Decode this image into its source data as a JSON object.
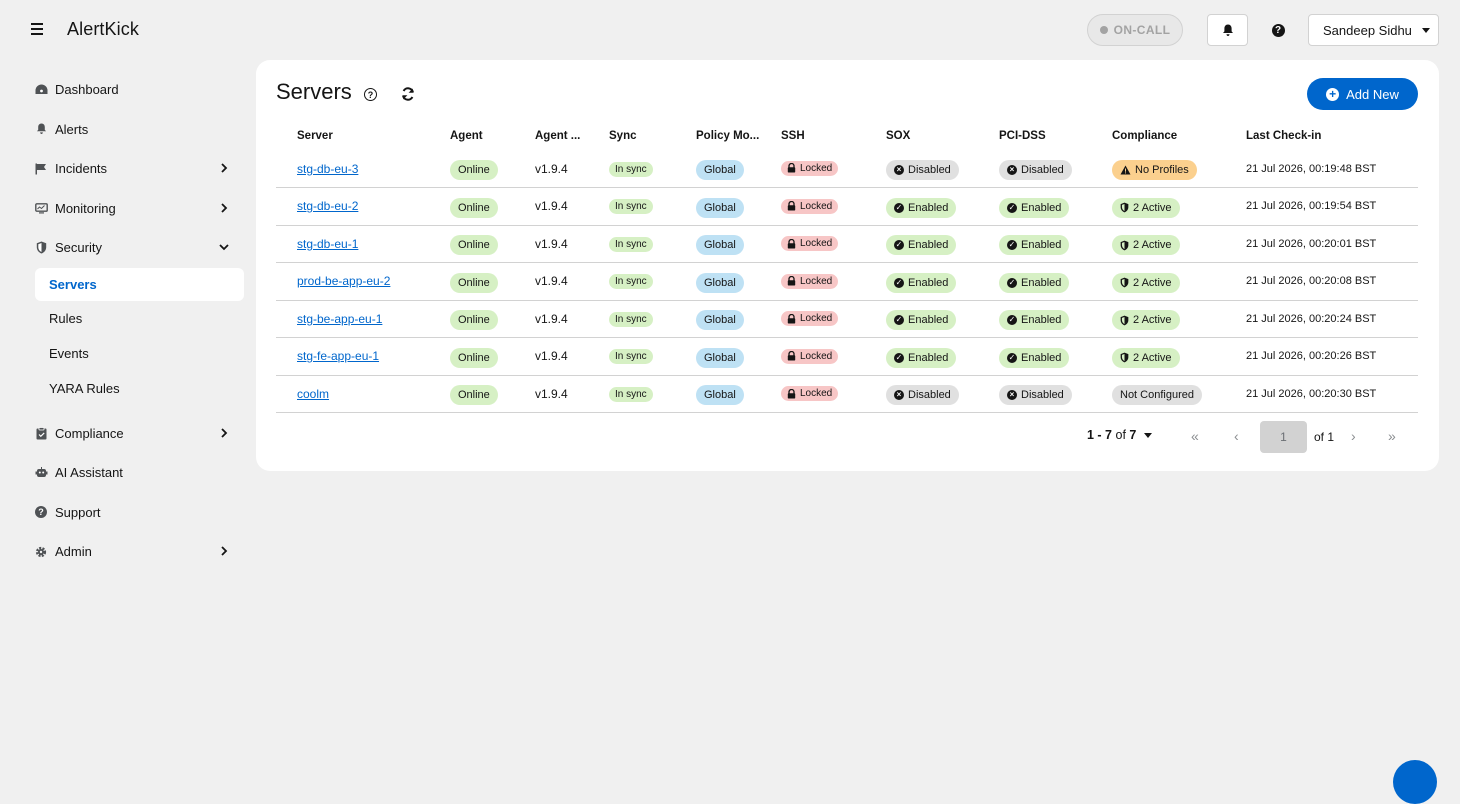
{
  "app": {
    "name": "AlertKick"
  },
  "header": {
    "oncall_label": "ON-CALL",
    "user_name": "Sandeep Sidhu"
  },
  "sidebar": {
    "items": [
      {
        "label": "Dashboard",
        "icon": "dashboard-icon"
      },
      {
        "label": "Alerts",
        "icon": "bell-icon"
      },
      {
        "label": "Incidents",
        "icon": "flag-icon"
      },
      {
        "label": "Monitoring",
        "icon": "monitor-icon"
      },
      {
        "label": "Security",
        "icon": "shield-icon"
      }
    ],
    "security_sub": [
      "Servers",
      "Rules",
      "Events",
      "YARA Rules"
    ],
    "items_after": [
      {
        "label": "Compliance",
        "icon": "clipboard-icon"
      },
      {
        "label": "AI Assistant",
        "icon": "robot-icon"
      },
      {
        "label": "Support",
        "icon": "help-icon"
      },
      {
        "label": "Admin",
        "icon": "gear-icon"
      }
    ]
  },
  "main": {
    "title": "Servers",
    "add_label": "Add New",
    "columns": [
      "Server",
      "Agent",
      "Agent ...",
      "Sync",
      "Policy Mo...",
      "SSH",
      "SOX",
      "PCI-DSS",
      "Compliance",
      "Last Check-in"
    ],
    "rows": [
      {
        "server": "stg-db-eu-3",
        "agent": "Online",
        "version": "v1.9.4",
        "sync": "In sync",
        "policy": "Global",
        "ssh": "Locked",
        "sox": "Disabled",
        "pci": "Disabled",
        "compliance": "No Profiles",
        "compliance_kind": "warn",
        "checkin": "21 Jul 2026, 00:19:48 BST"
      },
      {
        "server": "stg-db-eu-2",
        "agent": "Online",
        "version": "v1.9.4",
        "sync": "In sync",
        "policy": "Global",
        "ssh": "Locked",
        "sox": "Enabled",
        "pci": "Enabled",
        "compliance": "2 Active",
        "compliance_kind": "active",
        "checkin": "21 Jul 2026, 00:19:54 BST"
      },
      {
        "server": "stg-db-eu-1",
        "agent": "Online",
        "version": "v1.9.4",
        "sync": "In sync",
        "policy": "Global",
        "ssh": "Locked",
        "sox": "Enabled",
        "pci": "Enabled",
        "compliance": "2 Active",
        "compliance_kind": "active",
        "checkin": "21 Jul 2026, 00:20:01 BST"
      },
      {
        "server": "prod-be-app-eu-2",
        "agent": "Online",
        "version": "v1.9.4",
        "sync": "In sync",
        "policy": "Global",
        "ssh": "Locked",
        "sox": "Enabled",
        "pci": "Enabled",
        "compliance": "2 Active",
        "compliance_kind": "active",
        "checkin": "21 Jul 2026, 00:20:08 BST"
      },
      {
        "server": "stg-be-app-eu-1",
        "agent": "Online",
        "version": "v1.9.4",
        "sync": "In sync",
        "policy": "Global",
        "ssh": "Locked",
        "sox": "Enabled",
        "pci": "Enabled",
        "compliance": "2 Active",
        "compliance_kind": "active",
        "checkin": "21 Jul 2026, 00:20:24 BST"
      },
      {
        "server": "stg-fe-app-eu-1",
        "agent": "Online",
        "version": "v1.9.4",
        "sync": "In sync",
        "policy": "Global",
        "ssh": "Locked",
        "sox": "Enabled",
        "pci": "Enabled",
        "compliance": "2 Active",
        "compliance_kind": "active",
        "checkin": "21 Jul 2026, 00:20:26 BST"
      },
      {
        "server": "coolm",
        "agent": "Online",
        "version": "v1.9.4",
        "sync": "In sync",
        "policy": "Global",
        "ssh": "Locked",
        "sox": "Disabled",
        "pci": "Disabled",
        "compliance": "Not Configured",
        "compliance_kind": "none",
        "checkin": "21 Jul 2026, 00:20:30 BST"
      }
    ],
    "pagination": {
      "range": "1 - 7",
      "of_label": "of",
      "total": "7",
      "page": "1",
      "of_pages": "of 1"
    }
  },
  "colors": {
    "accent": "#0066cc",
    "green": "#d6f0c4",
    "blue": "#bee1f4",
    "red": "#f7c6c6",
    "grey": "#e0e0e0",
    "orange": "#fbd08e"
  }
}
